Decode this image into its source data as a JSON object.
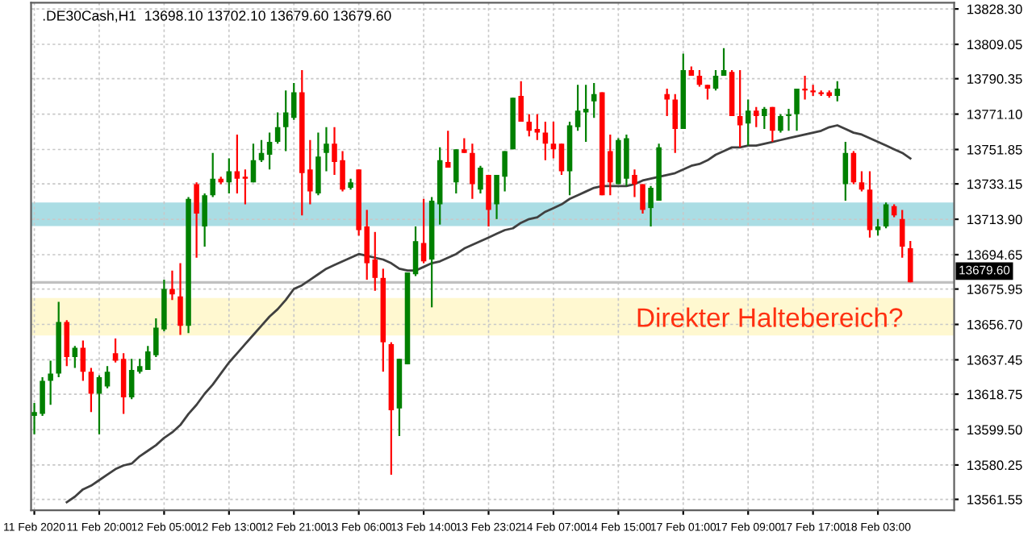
{
  "chart_data": {
    "type": "candlestick",
    "title": ".DE30Cash,H1  13698.10 13702.10 13679.60 13679.60",
    "categories": [
      "11 Feb 2020",
      null,
      null,
      null,
      null,
      null,
      null,
      null,
      "11 Feb 20:00",
      null,
      null,
      null,
      null,
      null,
      null,
      null,
      "12 Feb 05:00",
      null,
      null,
      null,
      null,
      null,
      null,
      null,
      "12 Feb 13:00",
      null,
      null,
      null,
      null,
      null,
      null,
      null,
      "12 Feb 21:00",
      null,
      null,
      null,
      null,
      null,
      null,
      null,
      "13 Feb 06:00",
      null,
      null,
      null,
      null,
      null,
      null,
      null,
      "13 Feb 14:00",
      null,
      null,
      null,
      null,
      null,
      null,
      null,
      "13 Feb 23:02",
      null,
      null,
      null,
      null,
      null,
      null,
      null,
      "14 Feb 07:00",
      null,
      null,
      null,
      null,
      null,
      null,
      null,
      "14 Feb 15:00",
      null,
      null,
      null,
      null,
      null,
      null,
      null,
      "17 Feb 01:00",
      null,
      null,
      null,
      null,
      null,
      null,
      null,
      "17 Feb 09:00",
      null,
      null,
      null,
      null,
      null,
      null,
      null,
      "17 Feb 17:00",
      null,
      null,
      null,
      null,
      null,
      null,
      null,
      "18 Feb 03:00",
      null,
      null,
      null,
      null
    ],
    "ohlc": [
      [
        13607,
        13614,
        13597,
        13609
      ],
      [
        13608,
        13628,
        13607,
        13626
      ],
      [
        13626,
        13637,
        13613,
        13630
      ],
      [
        13630,
        13669,
        13628,
        13658
      ],
      [
        13658,
        13659,
        13634,
        13639
      ],
      [
        13639,
        13645,
        13633,
        13644
      ],
      [
        13644,
        13648,
        13626,
        13631
      ],
      [
        13631,
        13633,
        13609,
        13619
      ],
      [
        13619,
        13629,
        13597,
        13628
      ],
      [
        13623,
        13634,
        13622,
        13631
      ],
      [
        13641,
        13649,
        13636,
        13637
      ],
      [
        13638,
        13641,
        13608,
        13617
      ],
      [
        13617,
        13638,
        13616,
        13632
      ],
      [
        13631,
        13638,
        13630,
        13634
      ],
      [
        13632,
        13645,
        13632,
        13642
      ],
      [
        13640,
        13660,
        13639,
        13655
      ],
      [
        13654,
        13681,
        13653,
        13676
      ],
      [
        13676,
        13686,
        13670,
        13673
      ],
      [
        13672,
        13690,
        13651,
        13656
      ],
      [
        13656,
        13726,
        13652,
        13725
      ],
      [
        13733,
        13734,
        13693,
        13717
      ],
      [
        13710,
        13728,
        13699,
        13727
      ],
      [
        13727,
        13750,
        13726,
        13736
      ],
      [
        13736,
        13737,
        13733,
        13734
      ],
      [
        13734,
        13747,
        13728,
        13740
      ],
      [
        13740,
        13760,
        13728,
        13736
      ],
      [
        13737,
        13741,
        13722,
        13736
      ],
      [
        13734,
        13755,
        13734,
        13746
      ],
      [
        13746,
        13757,
        13745,
        13750
      ],
      [
        13749,
        13761,
        13741,
        13756
      ],
      [
        13756,
        13772,
        13755,
        13764
      ],
      [
        13764,
        13784,
        13751,
        13772
      ],
      [
        13769,
        13788,
        13768,
        13783
      ],
      [
        13783,
        13795,
        13716,
        13739
      ],
      [
        13741,
        13757,
        13722,
        13729
      ],
      [
        13728,
        13761,
        13727,
        13748
      ],
      [
        13750,
        13764,
        13740,
        13755
      ],
      [
        13755,
        13764,
        13738,
        13745
      ],
      [
        13746,
        13751,
        13729,
        13730
      ],
      [
        13731,
        13736,
        13730,
        13734
      ],
      [
        13741,
        13741,
        13705,
        13708
      ],
      [
        13710,
        13719,
        13681,
        13690
      ],
      [
        13692,
        13707,
        13675,
        13682
      ],
      [
        13682,
        13687,
        13631,
        13647
      ],
      [
        13646,
        13647,
        13575,
        13610
      ],
      [
        13611,
        13638,
        13596,
        13638
      ],
      [
        13635,
        13685,
        13635,
        13685
      ],
      [
        13684,
        13710,
        13683,
        13702
      ],
      [
        13701,
        13725,
        13690,
        13691
      ],
      [
        13692,
        13726,
        13666,
        13724
      ],
      [
        13722,
        13753,
        13711,
        13746
      ],
      [
        13745,
        13762,
        13742,
        13742
      ],
      [
        13734,
        13752,
        13728,
        13752
      ],
      [
        13752,
        13758,
        13750,
        13750
      ],
      [
        13750,
        13755,
        13725,
        13733
      ],
      [
        13730,
        13743,
        13728,
        13742
      ],
      [
        13738,
        13738,
        13710,
        13719
      ],
      [
        13722,
        13738,
        13714,
        13738
      ],
      [
        13737,
        13751,
        13729,
        13751
      ],
      [
        13752,
        13780,
        13752,
        13780
      ],
      [
        13781,
        13789,
        13767,
        13767
      ],
      [
        13767,
        13771,
        13759,
        13762
      ],
      [
        13763,
        13771,
        13757,
        13761
      ],
      [
        13761,
        13767,
        13746,
        13755
      ],
      [
        13755,
        13767,
        13747,
        13752
      ],
      [
        13755,
        13755,
        13738,
        13740
      ],
      [
        13740,
        13767,
        13727,
        13765
      ],
      [
        13764,
        13787,
        13762,
        13773
      ],
      [
        13772,
        13787,
        13756,
        13774
      ],
      [
        13778,
        13788,
        13769,
        13782
      ],
      [
        13783,
        13783,
        13727,
        13727
      ],
      [
        13751,
        13760,
        13727,
        13734
      ],
      [
        13733,
        13758,
        13733,
        13757
      ],
      [
        13736,
        13760,
        13732,
        13758
      ],
      [
        13738,
        13741,
        13726,
        13733
      ],
      [
        13733,
        13733,
        13717,
        13719
      ],
      [
        13720,
        13732,
        13710,
        13731
      ],
      [
        13724,
        13755,
        13724,
        13753
      ],
      [
        13782,
        13785,
        13770,
        13779
      ],
      [
        13779,
        13782,
        13750,
        13763
      ],
      [
        13763,
        13804,
        13763,
        13795
      ],
      [
        13795,
        13797,
        13792,
        13792
      ],
      [
        13792,
        13795,
        13786,
        13787
      ],
      [
        13787,
        13787,
        13779,
        13785
      ],
      [
        13785,
        13795,
        13784,
        13792
      ],
      [
        13792,
        13807,
        13792,
        13795
      ],
      [
        13794,
        13795,
        13770,
        13770
      ],
      [
        13770,
        13795,
        13753,
        13765
      ],
      [
        13766,
        13779,
        13754,
        13773
      ],
      [
        13773,
        13775,
        13764,
        13770
      ],
      [
        13770,
        13775,
        13763,
        13774
      ],
      [
        13775,
        13775,
        13756,
        13762
      ],
      [
        13762,
        13771,
        13761,
        13770
      ],
      [
        13770,
        13774,
        13762,
        13771
      ],
      [
        13771,
        13785,
        13762,
        13785
      ],
      [
        13785,
        13792,
        13779,
        13784
      ],
      [
        13784,
        13787,
        13781,
        13783
      ],
      [
        13783,
        13784,
        13781,
        13782
      ],
      [
        13783,
        13784,
        13780,
        13781
      ],
      [
        13781,
        13789,
        13778,
        13785
      ],
      [
        13733,
        13756,
        13724,
        13750
      ],
      [
        13750,
        13751,
        13733,
        13734
      ],
      [
        13734,
        13740,
        13729,
        13730
      ],
      [
        13730,
        13740,
        13704,
        13708
      ],
      [
        13708,
        13714,
        13705,
        13710
      ],
      [
        13710,
        13723,
        13709,
        13722
      ],
      [
        13721,
        13722,
        13715,
        13716
      ],
      [
        13714,
        13719,
        13693,
        13699
      ],
      [
        13698.1,
        13702.1,
        13679.6,
        13679.6
      ]
    ],
    "colors": [
      "#008000",
      "#008000",
      "#008000",
      "#008000",
      "#ff0000",
      "#008000",
      "#ff0000",
      "#ff0000",
      "#008000",
      "#008000",
      "#ff0000",
      "#ff0000",
      "#008000",
      "#008000",
      "#008000",
      "#008000",
      "#008000",
      "#ff0000",
      "#ff0000",
      "#008000",
      "#ff0000",
      "#008000",
      "#008000",
      "#ff0000",
      "#008000",
      "#ff0000",
      "#ff0000",
      "#008000",
      "#008000",
      "#008000",
      "#008000",
      "#008000",
      "#008000",
      "#ff0000",
      "#ff0000",
      "#008000",
      "#008000",
      "#ff0000",
      "#ff0000",
      "#008000",
      "#ff0000",
      "#ff0000",
      "#ff0000",
      "#ff0000",
      "#ff0000",
      "#008000",
      "#008000",
      "#008000",
      "#ff0000",
      "#008000",
      "#008000",
      "#ff0000",
      "#008000",
      "#ff0000",
      "#ff0000",
      "#008000",
      "#ff0000",
      "#008000",
      "#008000",
      "#008000",
      "#ff0000",
      "#ff0000",
      "#ff0000",
      "#ff0000",
      "#ff0000",
      "#ff0000",
      "#008000",
      "#008000",
      "#008000",
      "#008000",
      "#ff0000",
      "#ff0000",
      "#008000",
      "#008000",
      "#ff0000",
      "#ff0000",
      "#008000",
      "#008000",
      "#ff0000",
      "#ff0000",
      "#008000",
      "#ff0000",
      "#ff0000",
      "#ff0000",
      "#008000",
      "#008000",
      "#ff0000",
      "#ff0000",
      "#008000",
      "#ff0000",
      "#008000",
      "#ff0000",
      "#008000",
      "#008000",
      "#008000",
      "#ff0000",
      "#ff0000",
      "#ff0000",
      "#ff0000",
      "#008000",
      "#008000",
      "#ff0000",
      "#ff0000",
      "#ff0000",
      "#008000",
      "#008000",
      "#ff0000",
      "#ff0000",
      "#ff0000"
    ],
    "series": [
      {
        "type": "line",
        "color": "#404040",
        "values": [
          null,
          null,
          null,
          null,
          13560,
          13563,
          13567,
          13569,
          13572,
          13575,
          13578,
          13580,
          13581,
          13585,
          13588,
          13591,
          13595,
          13598,
          13602,
          13608,
          13613,
          13619,
          13624,
          13630,
          13636,
          13641,
          13646,
          13651,
          13656,
          13661,
          13665,
          13670,
          13676,
          13678,
          13681,
          13684,
          13687,
          13689,
          13691,
          13693,
          13695,
          13694,
          13693,
          13692,
          13690,
          13687,
          13686,
          13686,
          13688,
          13690,
          13691,
          13693,
          13695,
          13698,
          13700,
          13702,
          13704,
          13706,
          13708,
          13709,
          13712,
          13714,
          13715,
          13718,
          13720,
          13722,
          13725,
          13727,
          13729,
          13731,
          13732,
          13732,
          13732,
          13732,
          13733,
          13735,
          13736,
          13737,
          13738,
          13739,
          13741,
          13743,
          13744,
          13746,
          13749,
          13751,
          13753,
          13753,
          13754,
          13754,
          13755,
          13756,
          13757,
          13758,
          13759,
          13760,
          13761,
          13762,
          13764,
          13765,
          13763,
          13761,
          13760,
          13758,
          13756,
          13754,
          13752,
          13750,
          13747
        ]
      }
    ],
    "ylim": [
      13555.6,
      13831.7
    ],
    "yticks": [
      {
        "value": 13828.3,
        "label": "13828.30"
      },
      {
        "value": 13809.05,
        "label": "13809.05"
      },
      {
        "value": 13790.35,
        "label": "13790.35"
      },
      {
        "value": 13771.1,
        "label": "13771.10"
      },
      {
        "value": 13751.85,
        "label": "13751.85"
      },
      {
        "value": 13733.15,
        "label": "13733.15"
      },
      {
        "value": 13713.9,
        "label": "13713.90"
      },
      {
        "value": 13694.65,
        "label": "13694.65"
      },
      {
        "value": 13675.95,
        "label": "13675.95"
      },
      {
        "value": 13656.7,
        "label": "13656.70"
      },
      {
        "value": 13637.45,
        "label": "13637.45"
      },
      {
        "value": 13618.75,
        "label": "13618.75"
      },
      {
        "value": 13599.5,
        "label": "13599.50"
      },
      {
        "value": 13580.25,
        "label": "13580.25"
      },
      {
        "value": 13561.55,
        "label": "13561.55"
      }
    ],
    "grid": true,
    "ref_lines": [
      {
        "axis": "y",
        "value": 13679.6,
        "label": "13679.60",
        "color": "#c0c0c0"
      }
    ],
    "bands": [
      {
        "axis": "y",
        "from": 13650.7,
        "to": 13671.1,
        "color": "#fff8d0"
      },
      {
        "axis": "y",
        "from": 13710.2,
        "to": 13723.0,
        "color": "#aadde4"
      }
    ],
    "annotations": [
      "Direkter Haltebereich?"
    ]
  }
}
